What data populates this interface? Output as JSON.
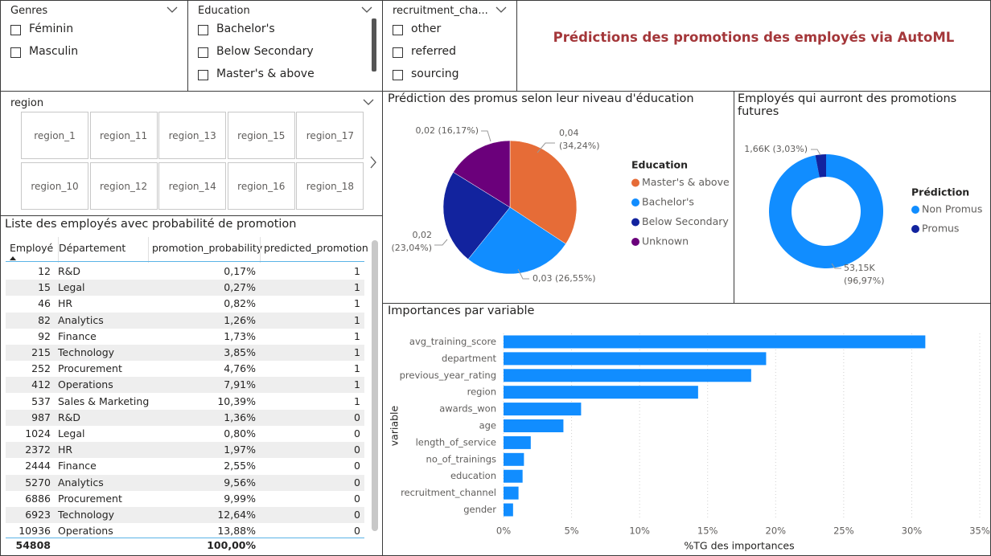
{
  "header": {
    "title": "Prédictions des promotions des employés via AutoML"
  },
  "slicers": [
    {
      "title": "Genres",
      "items": [
        "Féminin",
        "Masculin"
      ]
    },
    {
      "title": "Education",
      "items": [
        "Bachelor's",
        "Below Secondary",
        "Master's & above"
      ]
    },
    {
      "title": "recruitment_cha...",
      "items": [
        "other",
        "referred",
        "sourcing"
      ]
    }
  ],
  "region_slicer": {
    "title": "region",
    "items": [
      "region_1",
      "region_11",
      "region_13",
      "region_15",
      "region_17",
      "region_10",
      "region_12",
      "region_14",
      "region_16",
      "region_18"
    ]
  },
  "table": {
    "title": "Liste des employés avec probabilité de promotion",
    "columns": [
      "Employé",
      "Département",
      "promotion_probability",
      "predicted_promotion"
    ],
    "rows": [
      [
        "12",
        "R&D",
        "0,17%",
        "1"
      ],
      [
        "15",
        "Legal",
        "0,27%",
        "1"
      ],
      [
        "46",
        "HR",
        "0,82%",
        "1"
      ],
      [
        "82",
        "Analytics",
        "1,26%",
        "1"
      ],
      [
        "92",
        "Finance",
        "1,73%",
        "1"
      ],
      [
        "215",
        "Technology",
        "3,85%",
        "1"
      ],
      [
        "252",
        "Procurement",
        "4,76%",
        "1"
      ],
      [
        "412",
        "Operations",
        "7,91%",
        "1"
      ],
      [
        "537",
        "Sales & Marketing",
        "10,39%",
        "1"
      ],
      [
        "987",
        "R&D",
        "1,36%",
        "0"
      ],
      [
        "1024",
        "Legal",
        "0,80%",
        "0"
      ],
      [
        "2372",
        "HR",
        "1,97%",
        "0"
      ],
      [
        "2444",
        "Finance",
        "2,55%",
        "0"
      ],
      [
        "5270",
        "Analytics",
        "9,56%",
        "0"
      ],
      [
        "6886",
        "Procurement",
        "9,99%",
        "0"
      ],
      [
        "6923",
        "Technology",
        "12,64%",
        "0"
      ],
      [
        "10936",
        "Operations",
        "13,88%",
        "0"
      ]
    ],
    "totals": {
      "employe": "54808",
      "probability": "100,00%"
    }
  },
  "chart_data": [
    {
      "type": "pie",
      "title": "Prédiction des promus selon leur niveau d'éducation",
      "legend_title": "Education",
      "categories": [
        "Master's & above",
        "Bachelor's",
        "Below Secondary",
        "Unknown"
      ],
      "colors": [
        "#e66c37",
        "#118dff",
        "#12239e",
        "#6b007b"
      ],
      "values": [
        34.24,
        26.55,
        23.04,
        16.17
      ],
      "value_labels": [
        "0,04 (34,24%)",
        "0,03 (26,55%)",
        "0,02 (23,04%)",
        "0,02 (16,17%)"
      ]
    },
    {
      "type": "donut",
      "title": "Employés qui aurront des promotions futures",
      "legend_title": "Prédiction",
      "categories": [
        "Non Promus",
        "Promus"
      ],
      "colors": [
        "#118dff",
        "#12239e"
      ],
      "values": [
        53150,
        1660
      ],
      "value_labels": [
        "53,15K (96,97%)",
        "1,66K (3,03%)"
      ]
    },
    {
      "type": "bar",
      "orientation": "horizontal",
      "title": "Importances par variable",
      "categories": [
        "avg_training_score",
        "department",
        "previous_year_rating",
        "region",
        "awards_won",
        "age",
        "length_of_service",
        "no_of_trainings",
        "education",
        "recruitment_channel",
        "gender"
      ],
      "values": [
        31.0,
        19.3,
        18.2,
        14.3,
        5.7,
        4.4,
        2.0,
        1.5,
        1.4,
        1.1,
        0.7
      ],
      "color": "#118dff",
      "xlim": [
        0,
        35
      ],
      "xticks": [
        {
          "value": 0,
          "label": "0%"
        },
        {
          "value": 5,
          "label": "5%"
        },
        {
          "value": 10,
          "label": "10%"
        },
        {
          "value": 15,
          "label": "15%"
        },
        {
          "value": 20,
          "label": "20%"
        },
        {
          "value": 25,
          "label": "25%"
        },
        {
          "value": 30,
          "label": "30%"
        },
        {
          "value": 35,
          "label": "35%"
        }
      ],
      "xlabel": "%TG des importances",
      "ylabel": "variable",
      "grid": true
    }
  ]
}
